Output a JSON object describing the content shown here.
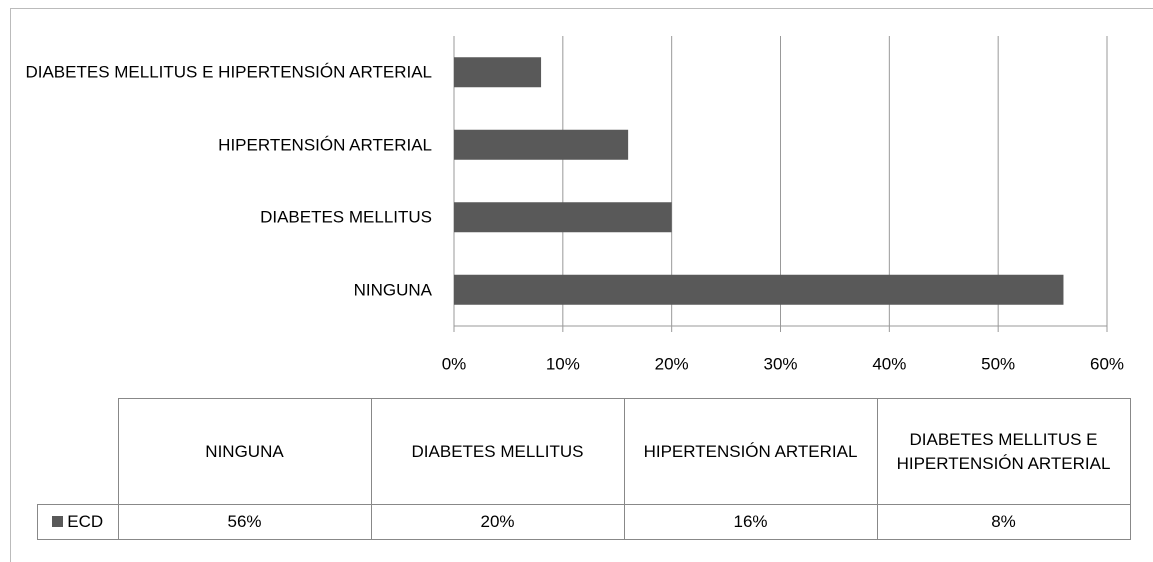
{
  "chart_data": {
    "type": "bar",
    "orientation": "horizontal",
    "categories": [
      "NINGUNA",
      "DIABETES MELLITUS",
      "HIPERTENSIÓN ARTERIAL",
      "DIABETES MELLITUS E HIPERTENSIÓN ARTERIAL"
    ],
    "series": [
      {
        "name": "ECD",
        "color": "#595959",
        "values": [
          56,
          20,
          16,
          8
        ],
        "value_labels": [
          "56%",
          "20%",
          "16%",
          "8%"
        ]
      }
    ],
    "xlim": [
      0,
      60
    ],
    "xticks": [
      {
        "value": 0,
        "label": "0%"
      },
      {
        "value": 10,
        "label": "10%"
      },
      {
        "value": 20,
        "label": "20%"
      },
      {
        "value": 30,
        "label": "30%"
      },
      {
        "value": 40,
        "label": "40%"
      },
      {
        "value": 50,
        "label": "50%"
      },
      {
        "value": 60,
        "label": "60%"
      }
    ],
    "grid": true
  }
}
